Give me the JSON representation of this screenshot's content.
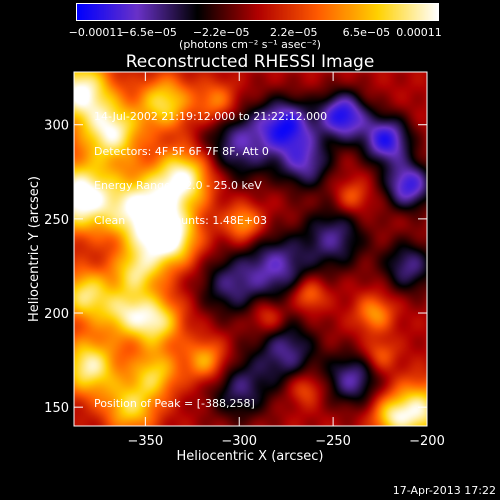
{
  "chart_data": {
    "type": "heatmap",
    "title": "Reconstructed RHESSI Image",
    "xlabel": "Heliocentric X (arcsec)",
    "ylabel": "Heliocentric Y (arcsec)",
    "xlim": [
      -388,
      -200
    ],
    "ylim": [
      140,
      328
    ],
    "x_ticks": [
      -350,
      -300,
      -250,
      -200
    ],
    "x_tick_labels": [
      "−350",
      "−300",
      "−250",
      "−200"
    ],
    "y_ticks": [
      150,
      200,
      250,
      300
    ],
    "y_tick_labels": [
      "150",
      "200",
      "250",
      "300"
    ],
    "colorbar": {
      "range": [
        -0.00011,
        0.00011
      ],
      "tick_labels": [
        "−0.00011",
        "−6.5e−05",
        "−2.2e−05",
        "2.2e−05",
        "6.5e−05",
        "0.00011"
      ],
      "units": "(photons cm⁻² s⁻¹ asec⁻²)",
      "colors": [
        "#0000ff",
        "#6a32c8",
        "#000000",
        "#b00000",
        "#ff5a00",
        "#ffd200",
        "#ffffff"
      ]
    },
    "peak_position": [
      -388,
      258
    ],
    "blobs": [
      {
        "x": -385,
        "y": 318,
        "amp": 1.0,
        "r": 12
      },
      {
        "x": -368,
        "y": 296,
        "amp": 0.9,
        "r": 11
      },
      {
        "x": -340,
        "y": 312,
        "amp": 0.75,
        "r": 10
      },
      {
        "x": -385,
        "y": 262,
        "amp": 1.1,
        "r": 13
      },
      {
        "x": -352,
        "y": 255,
        "amp": 0.95,
        "r": 13
      },
      {
        "x": -330,
        "y": 272,
        "amp": 0.95,
        "r": 11
      },
      {
        "x": -338,
        "y": 240,
        "amp": 1.0,
        "r": 11
      },
      {
        "x": -355,
        "y": 222,
        "amp": 0.7,
        "r": 9
      },
      {
        "x": -382,
        "y": 210,
        "amp": 0.8,
        "r": 10
      },
      {
        "x": -362,
        "y": 200,
        "amp": 0.6,
        "r": 9
      },
      {
        "x": -345,
        "y": 196,
        "amp": 0.85,
        "r": 10
      },
      {
        "x": -380,
        "y": 172,
        "amp": 0.9,
        "r": 11
      },
      {
        "x": -345,
        "y": 168,
        "amp": 0.65,
        "r": 9
      },
      {
        "x": -358,
        "y": 150,
        "amp": 0.7,
        "r": 10
      },
      {
        "x": -318,
        "y": 175,
        "amp": 0.6,
        "r": 8
      },
      {
        "x": -312,
        "y": 312,
        "amp": 0.5,
        "r": 8
      },
      {
        "x": -298,
        "y": 248,
        "amp": 0.55,
        "r": 7
      },
      {
        "x": -263,
        "y": 210,
        "amp": 0.45,
        "r": 6
      },
      {
        "x": -285,
        "y": 198,
        "amp": 0.35,
        "r": 6
      },
      {
        "x": -228,
        "y": 200,
        "amp": 0.5,
        "r": 7
      },
      {
        "x": -225,
        "y": 178,
        "amp": 0.35,
        "r": 6
      },
      {
        "x": -240,
        "y": 262,
        "amp": 0.35,
        "r": 6
      },
      {
        "x": -205,
        "y": 148,
        "amp": 0.9,
        "r": 11
      },
      {
        "x": -220,
        "y": 145,
        "amp": 0.5,
        "r": 7
      },
      {
        "x": -265,
        "y": 160,
        "amp": 0.35,
        "r": 6
      },
      {
        "x": -300,
        "y": 290,
        "amp": -0.6,
        "r": 14
      },
      {
        "x": -275,
        "y": 300,
        "amp": -0.8,
        "r": 10
      },
      {
        "x": -245,
        "y": 305,
        "amp": -0.9,
        "r": 9
      },
      {
        "x": -222,
        "y": 292,
        "amp": -0.85,
        "r": 9
      },
      {
        "x": -210,
        "y": 268,
        "amp": -0.8,
        "r": 9
      },
      {
        "x": -265,
        "y": 280,
        "amp": -0.6,
        "r": 10
      },
      {
        "x": -250,
        "y": 240,
        "amp": -0.55,
        "r": 12
      },
      {
        "x": -280,
        "y": 225,
        "amp": -0.6,
        "r": 12
      },
      {
        "x": -305,
        "y": 215,
        "amp": -0.5,
        "r": 12
      },
      {
        "x": -275,
        "y": 180,
        "amp": -0.55,
        "r": 12
      },
      {
        "x": -240,
        "y": 165,
        "amp": -0.6,
        "r": 10
      },
      {
        "x": -300,
        "y": 160,
        "amp": -0.5,
        "r": 12
      },
      {
        "x": -210,
        "y": 225,
        "amp": -0.55,
        "r": 10
      }
    ]
  },
  "annotation_lines": [
    "14-Jul-2002 21:19:12.000 to 21:22:12.000",
    "Detectors: 4F 5F 6F 7F 8F, Att 0",
    "Energy Range: 12.0 - 25.0 keV",
    "Clean    Total counts: 1.48E+03"
  ],
  "peak_label": "Position of Peak = [-388,258]",
  "footer_date": "17-Apr-2013 17:22"
}
